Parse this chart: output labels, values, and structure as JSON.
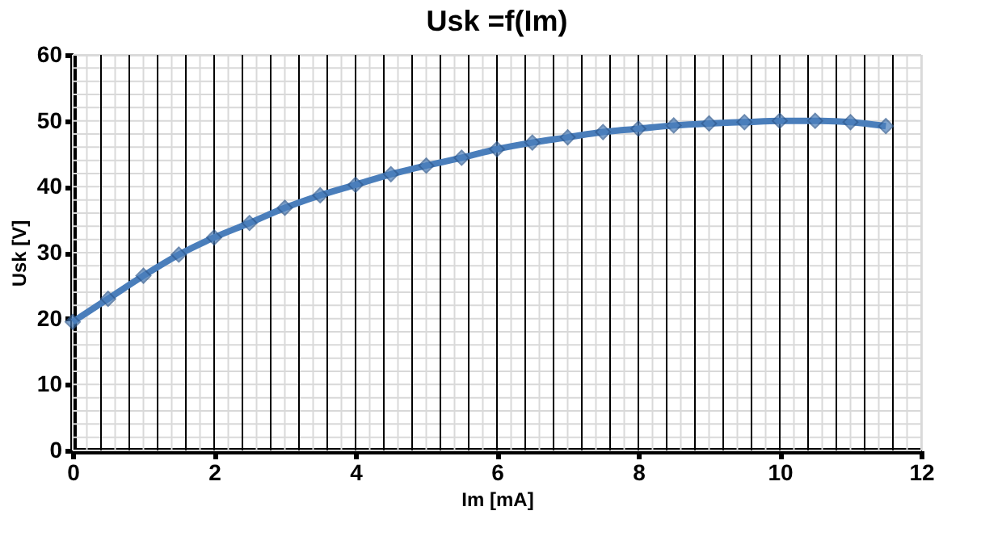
{
  "chart_data": {
    "type": "line",
    "title": "Usk =f(Im)",
    "xlabel": "Im [mA]",
    "ylabel": "Usk [V]",
    "x": [
      0,
      0.5,
      1,
      1.5,
      2,
      2.5,
      3,
      3.5,
      4,
      4.5,
      5,
      5.5,
      6,
      6.5,
      7,
      7.5,
      8,
      8.5,
      9,
      9.5,
      10,
      10.5,
      11,
      11.5
    ],
    "series": [
      {
        "color": "#4a7ebb",
        "values": [
          19.5,
          23,
          26.5,
          29.7,
          32.3,
          34.5,
          36.8,
          38.7,
          40.3,
          41.9,
          43.2,
          44.4,
          45.7,
          46.7,
          47.5,
          48.3,
          48.8,
          49.3,
          49.6,
          49.8,
          50,
          50,
          49.8,
          49.2
        ]
      }
    ],
    "xlim": [
      0,
      12
    ],
    "xticks": [
      0,
      2,
      4,
      6,
      8,
      10,
      12
    ],
    "ylim": [
      0,
      60
    ],
    "yticks": [
      0,
      10,
      20,
      30,
      40,
      50,
      60
    ],
    "grid": true,
    "marker": "diamond",
    "line_style": "solid",
    "legend": false
  }
}
